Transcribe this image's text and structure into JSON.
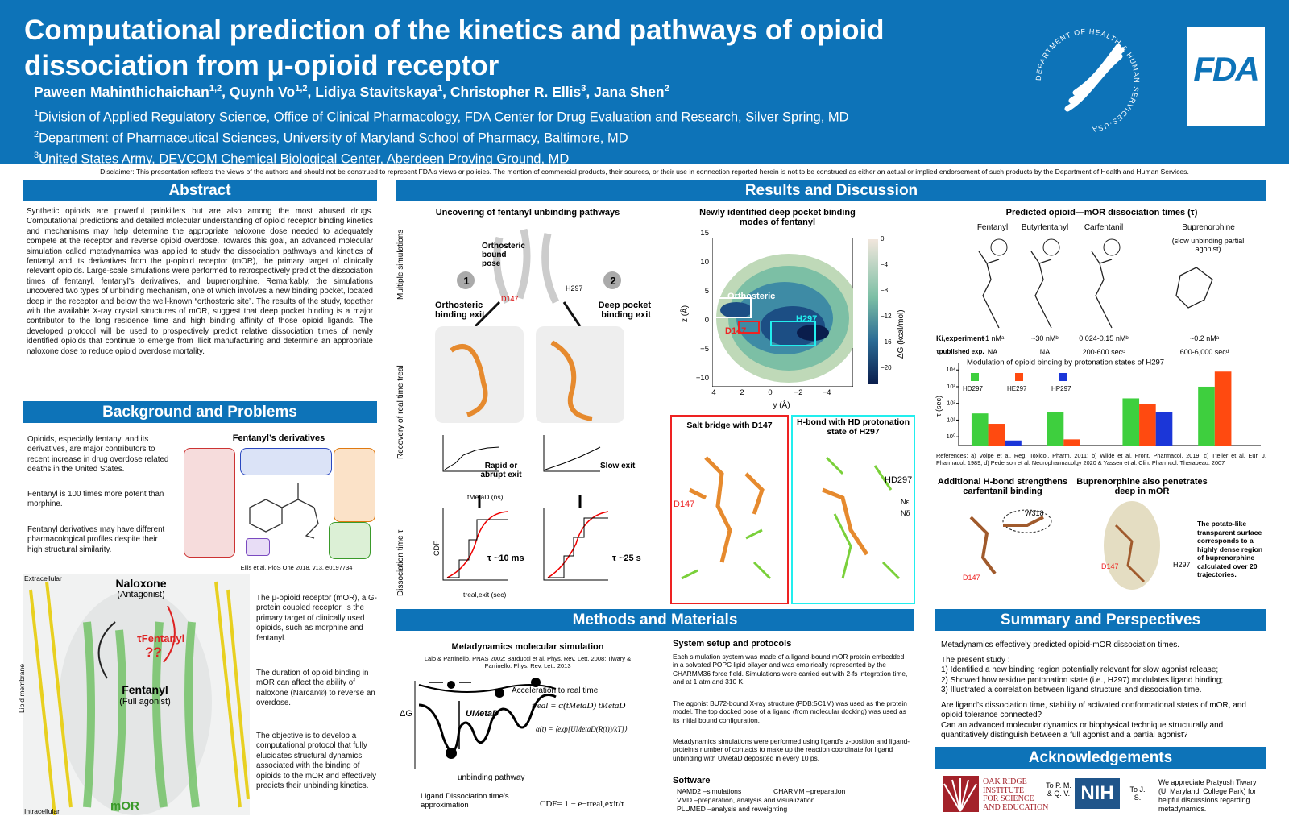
{
  "header": {
    "title": "Computational prediction of the kinetics and pathways of opioid dissociation from μ-opioid receptor",
    "authors": [
      [
        "Paween Mahinthichaichan",
        "1,2"
      ],
      [
        ", Quynh Vo",
        "1,2"
      ],
      [
        ", Lidiya Stavitskaya",
        "1"
      ],
      [
        ", Christopher R. Ellis",
        "3"
      ],
      [
        ", Jana Shen",
        "2"
      ]
    ],
    "affiliations": [
      [
        "1",
        "Division of Applied Regulatory Science, Office of Clinical Pharmacology, FDA Center for Drug Evaluation and Research, Silver Spring, MD"
      ],
      [
        "2",
        "Department of Pharmaceutical Sciences, University of Maryland School of Pharmacy, Baltimore, MD"
      ],
      [
        "3",
        "United States Army, DEVCOM Chemical Biological Center, Aberdeen Proving Ground, MD"
      ]
    ],
    "hhs_seal": "DEPARTMENT OF HEALTH & HUMAN SERVICES·USA",
    "logo": "FDA"
  },
  "disclaimer": "Disclaimer: This presentation reflects the views of the authors and should not be construed to represent FDA's views or policies. The mention of commercial products, their sources, or their use in connection reported herein is not to be construed as either an actual or implied endorsement of such products by the Department of Health and Human Services.",
  "abstract": {
    "heading": "Abstract",
    "text": "Synthetic opioids are powerful painkillers but are also among the most abused drugs. Computational predictions and detailed molecular understanding of opioid receptor binding kinetics and mechanisms may help determine the appropriate naloxone dose needed to adequately compete at the receptor and reverse opioid overdose. Towards this goal, an advanced molecular simulation called metadynamics was applied to study the dissociation pathways and kinetics of fentanyl and its derivatives from the μ-opioid receptor (mOR), the primary target of clinically relevant opioids. Large-scale simulations were performed to retrospectively predict the dissociation times of fentanyl, fentanyl’s derivatives, and buprenorphine. Remarkably, the simulations uncovered two types of unbinding mechanism, one of which involves a new binding pocket, located deep in the receptor and below the well-known “orthosteric site”. The results of the study, together with the available X-ray crystal structures of mOR, suggest that deep pocket binding is a major contributor to the long residence time and high binding affinity of those opioid ligands. The developed protocol will be used to prospectively predict relative dissociation times of newly identified opioids that continue to emerge from illicit manufacturing and determine an appropriate naloxone dose to reduce opioid overdose mortality."
  },
  "background": {
    "heading": "Background and Problems",
    "paragraphs": [
      "Opioids, especially fentanyl and its derivatives, are major contributors to recent increase in drug overdose related deaths in the United States.",
      "Fentanyl is 100 times more potent than morphine.",
      "Fentanyl derivatives may have different pharmacological profiles despite their high structural similarity."
    ],
    "figure_title": "Fentanyl’s derivatives",
    "citation": "Ellis et al. PloS One 2018, v13, e0197734",
    "receptor_labels": [
      "Extracellular",
      "Intracellular",
      "Lipid membrane",
      "Naloxone",
      "(Antagonist)",
      "Fentanyl",
      "(Full agonist)",
      "mOR",
      "τFentanyl",
      "??"
    ],
    "receptor_paragraphs": [
      "The μ-opioid receptor (mOR), a G-protein coupled receptor, is the primary target of clinically used opioids, such as morphine and fentanyl.",
      "The duration of opioid binding in mOR can affect the ability of naloxone (Narcan®) to reverse an overdose.",
      "The objective is to develop a computational protocol that fully elucidates structural dynamics associated with the binding of opioids to the mOR and effectively predicts their unbinding kinetics."
    ]
  },
  "results": {
    "heading": "Results and Discussion",
    "pathways": {
      "title": "Uncovering of fentanyl unbinding pathways",
      "labels": [
        "Multiple simulations",
        "Orthosteric bound pose",
        "1",
        "2",
        "Orthosteric binding exit",
        "Deep pocket binding exit",
        "D147",
        "H297",
        "Recovery of real time treal",
        "Rapid or abrupt exit",
        "Slow exit",
        "Dissociation time τ",
        "τ ~10 ms",
        "τ ~25 s",
        "CDF",
        "treal,exit (sec)",
        "tMetaD (ns)"
      ]
    },
    "deep_pocket": {
      "title": "Newly identified deep pocket binding modes of fentanyl",
      "labels": [
        "Orthosteric",
        "H297",
        "D147",
        "z (Å)",
        "y (Å)",
        "ΔG (kcal/mol)"
      ],
      "yticks": [
        "15",
        "10",
        "5",
        "0",
        "−5",
        "−10"
      ],
      "xticks": [
        "4",
        "2",
        "0",
        "−2",
        "−4"
      ],
      "cbar_ticks": [
        "0",
        "−4",
        "−8",
        "−12",
        "−16",
        "−20"
      ],
      "box1": "Salt bridge with D147",
      "box2": "H-bond with HD protonation state of H297",
      "box_labels": [
        "D147",
        "HD297",
        "Nε",
        "Nδ"
      ]
    },
    "tau": {
      "title": "Predicted opioid—mOR dissociation times (τ)",
      "drugs": [
        "Fentanyl",
        "Butyrfentanyl",
        "Carfentanil",
        "Buprenorphine"
      ],
      "drug_note": "(slow unbinding partial agonist)",
      "ki_label": "Ki,experiment",
      "ki": [
        "~1 nMᵃ",
        "~30 nMᵇ",
        "0.024-0.15 nMᵇ",
        "~0.2 nMᵃ"
      ],
      "tau_label": "τpublished exp.",
      "tau_exp": [
        "NA",
        "NA",
        "200-600 secᶜ",
        "600-6,000 secᵈ"
      ],
      "references": "References: a) Volpe et al. Reg. Toxicol. Pharm. 2011; b) Wilde et al. Front. Pharmacol. 2019; c) Tteiler et al. Eur. J. Pharmacol. 1989; d) Pederson et al. Neuropharmacolgy 2020 & Yassen et al. Clin. Pharmcol. Therapeau. 2007"
    },
    "hbond": {
      "title": "Additional H-bond strengthens carfentanil binding",
      "labels": [
        "W318",
        "D147"
      ]
    },
    "bup": {
      "title": "Buprenorphine also penetrates deep in mOR",
      "labels": [
        "D147",
        "H297"
      ],
      "note": "The potato-like transparent surface corresponds to a highly dense region of buprenorphine calculated over 20 trajectories."
    }
  },
  "methods": {
    "heading": "Methods and Materials",
    "title": "Metadynamics molecular simulation",
    "citation": "Laio & Parrinello. PNAS 2002; Barducci et al. Phys. Rev. Lett. 2008; Tiwary & Parrinello. Phys. Rev. Lett. 2013",
    "labels": [
      "Acceleration to real time",
      "treal = α(tMetaD) tMetaD",
      "α(t) = ⟨exp[UMetaD(R(t))/kT]⟩",
      "ΔG",
      "UMetaD",
      "unbinding pathway",
      "Ligand Dissociation time’s approximation",
      "CDF= 1 − e−treal,exit/τ"
    ],
    "setup_heading": "System setup and protocols",
    "setup": [
      "Each simulation system was made of a ligand-bound mOR protein embedded in a solvated POPC lipid bilayer and was empirically represented by the CHARMM36 force field. Simulations were carried out with 2-fs integration time, and at 1 atm and 310 K.",
      "The agonist BU72-bound X-ray structure (PDB:5C1M) was used as the protein model. The top docked pose of a ligand (from molecular docking) was used as its initial bound configuration.",
      "Metadynamics simulations were performed using ligand’s z-position and ligand-protein’s number of contacts to make up the reaction coordinate for ligand unbinding with UMetaD deposited in every 10 ps."
    ],
    "software_heading": "Software",
    "software": [
      "NAMD2 –simulations",
      "VMD –preparation, analysis and visualization",
      "PLUMED –analysis and reweighting",
      "CHARMM –preparation"
    ]
  },
  "summary": {
    "heading": "Summary and Perspectives",
    "lead": "Metadynamics effectively predicted opioid-mOR dissociation times.",
    "intro": "The present study :",
    "items": [
      "1)  Identified a new binding region potentially relevant for slow agonist release;",
      "2)  Showed how residue protonation state (i.e., H297) modulates ligand binding;",
      "3)  Illustrated a correlation between ligand structure and dissociation time."
    ],
    "questions": [
      "Are ligand’s dissociation time, stability of activated conformational states of mOR, and opioid tolerance connected?",
      "Can an advanced molecular dynamics or biophysical technique structurally and quantitatively distinguish between a full agonist and a partial agonist?"
    ]
  },
  "acknowledgements": {
    "heading": "Acknowledgements",
    "orise": [
      "OAK RIDGE",
      "INSTITUTE",
      "FOR SCIENCE",
      "AND EDUCATION"
    ],
    "to1": "To P. M. & Q. V.",
    "nih": "NIH",
    "to2": "To J. S.",
    "text": "We appreciate Pratyush Tiwary (U. Maryland, College Park) for helpful discussions regarding metadynamics."
  },
  "chart_data": {
    "type": "bar",
    "title": "Modulation of opioid binding by protonation states of H297",
    "y_label": "τ (sec)",
    "categories": [
      null,
      null,
      null,
      null
    ],
    "log_y": true,
    "ylim": [
      0.3,
      16000
    ],
    "yticks": [
      {
        "value": 1,
        "label": "10⁰"
      },
      {
        "value": 10,
        "label": "10¹"
      },
      {
        "value": 100,
        "label": "10²"
      },
      {
        "value": 1000,
        "label": "10³"
      },
      {
        "value": 10000,
        "label": "10⁴"
      }
    ],
    "series": [
      {
        "name": "HD297",
        "color": "#3ecf3e",
        "values": [
          25,
          30,
          200,
          1000
        ]
      },
      {
        "name": "HE297",
        "color": "#ff4a10",
        "values": [
          6,
          0.7,
          90,
          8000
        ]
      },
      {
        "name": "HP297",
        "color": "#1b36d8",
        "values": [
          0.6,
          null,
          30,
          null
        ]
      }
    ]
  }
}
